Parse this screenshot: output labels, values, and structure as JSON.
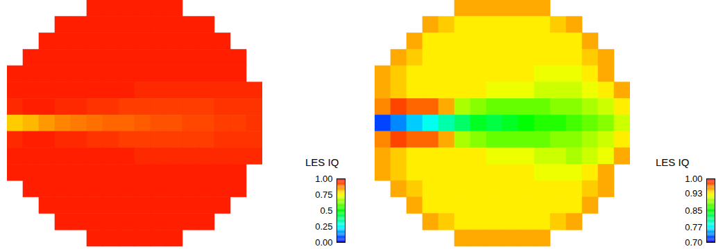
{
  "chart_data": [
    {
      "type": "heatmap",
      "colorbar": {
        "label": "LES IQ",
        "range": [
          0,
          1
        ],
        "ticks": [
          {
            "value": 1,
            "label": "1.00"
          },
          0.75,
          0.5,
          0.25,
          {
            "value": 0,
            "label": "0.00"
          }
        ]
      },
      "cells": [
        [
          null,
          null,
          null,
          null,
          null,
          0.97,
          0.97,
          0.97,
          0.97,
          0.97,
          0.97,
          null,
          null,
          null,
          null,
          null
        ],
        [
          null,
          null,
          null,
          0.97,
          0.97,
          0.97,
          0.97,
          0.97,
          0.97,
          0.97,
          0.97,
          0.97,
          0.97,
          null,
          null,
          null
        ],
        [
          null,
          null,
          0.97,
          0.97,
          0.97,
          0.97,
          0.97,
          0.97,
          0.97,
          0.97,
          0.97,
          0.97,
          0.97,
          0.97,
          null,
          null
        ],
        [
          null,
          0.97,
          0.97,
          0.97,
          0.97,
          0.97,
          0.97,
          0.97,
          0.97,
          0.97,
          0.97,
          0.97,
          0.97,
          0.97,
          0.97,
          null
        ],
        [
          0.97,
          0.97,
          0.97,
          0.97,
          0.97,
          0.97,
          0.97,
          0.97,
          0.97,
          0.97,
          0.97,
          0.97,
          0.97,
          0.97,
          0.97,
          null
        ],
        [
          0.97,
          0.97,
          0.97,
          0.97,
          0.97,
          0.97,
          0.97,
          0.97,
          0.96,
          0.96,
          0.96,
          0.96,
          0.96,
          0.96,
          0.96,
          0.96
        ],
        [
          0.96,
          0.97,
          0.97,
          0.96,
          0.96,
          0.95,
          0.95,
          0.94,
          0.94,
          0.94,
          0.94,
          0.94,
          0.94,
          0.95,
          0.95,
          0.95
        ],
        [
          0.8,
          0.82,
          0.85,
          0.87,
          0.88,
          0.89,
          0.9,
          0.9,
          0.91,
          0.92,
          0.92,
          0.93,
          0.93,
          0.94,
          0.94,
          0.95
        ],
        [
          0.96,
          0.97,
          0.97,
          0.96,
          0.96,
          0.95,
          0.95,
          0.94,
          0.94,
          0.94,
          0.94,
          0.94,
          0.94,
          0.95,
          0.95,
          0.95
        ],
        [
          0.97,
          0.97,
          0.97,
          0.97,
          0.97,
          0.97,
          0.97,
          0.97,
          0.96,
          0.96,
          0.96,
          0.96,
          0.96,
          0.96,
          0.96,
          0.96
        ],
        [
          0.97,
          0.97,
          0.97,
          0.97,
          0.97,
          0.97,
          0.97,
          0.97,
          0.97,
          0.97,
          0.97,
          0.97,
          0.97,
          0.97,
          0.97,
          null
        ],
        [
          null,
          0.97,
          0.97,
          0.97,
          0.97,
          0.97,
          0.97,
          0.97,
          0.97,
          0.97,
          0.97,
          0.97,
          0.97,
          0.97,
          0.97,
          null
        ],
        [
          null,
          null,
          0.97,
          0.97,
          0.97,
          0.97,
          0.97,
          0.97,
          0.97,
          0.97,
          0.97,
          0.97,
          0.97,
          0.97,
          null,
          null
        ],
        [
          null,
          null,
          null,
          0.97,
          0.97,
          0.97,
          0.97,
          0.97,
          0.97,
          0.97,
          0.97,
          0.97,
          0.97,
          null,
          null,
          null
        ],
        [
          null,
          null,
          null,
          null,
          null,
          0.97,
          0.97,
          0.97,
          0.97,
          0.97,
          0.97,
          null,
          null,
          null,
          null,
          null
        ]
      ]
    },
    {
      "type": "heatmap",
      "colorbar": {
        "label": "LES IQ",
        "range": [
          0.7,
          1
        ],
        "ticks": [
          {
            "value": 1,
            "label": "1.00"
          },
          0.93,
          0.85,
          0.77,
          {
            "value": 0.7,
            "label": "0.70"
          }
        ]
      },
      "cells": [
        [
          null,
          null,
          null,
          null,
          null,
          0.95,
          0.95,
          0.95,
          0.95,
          0.95,
          0.95,
          null,
          null,
          null,
          null,
          null
        ],
        [
          null,
          null,
          null,
          0.95,
          0.94,
          0.93,
          0.93,
          0.93,
          0.93,
          0.93,
          0.93,
          0.94,
          0.95,
          null,
          null,
          null
        ],
        [
          null,
          null,
          0.95,
          0.93,
          0.93,
          0.93,
          0.93,
          0.93,
          0.93,
          0.93,
          0.93,
          0.93,
          0.93,
          0.95,
          null,
          null
        ],
        [
          null,
          0.95,
          0.94,
          0.93,
          0.93,
          0.93,
          0.93,
          0.93,
          0.93,
          0.93,
          0.93,
          0.93,
          0.93,
          0.94,
          0.95,
          null
        ],
        [
          0.95,
          0.94,
          0.93,
          0.93,
          0.93,
          0.93,
          0.93,
          0.93,
          0.93,
          0.93,
          0.92,
          0.92,
          0.92,
          0.93,
          0.95,
          null
        ],
        [
          0.95,
          0.94,
          0.93,
          0.93,
          0.93,
          0.93,
          0.93,
          0.92,
          0.92,
          0.92,
          0.91,
          0.91,
          0.91,
          0.92,
          0.93,
          0.95
        ],
        [
          0.96,
          0.98,
          0.97,
          0.97,
          0.95,
          0.9,
          0.89,
          0.88,
          0.88,
          0.88,
          0.88,
          0.89,
          0.89,
          0.9,
          0.91,
          0.93
        ],
        [
          0.72,
          0.74,
          0.76,
          0.78,
          0.8,
          0.82,
          0.84,
          0.83,
          0.84,
          0.85,
          0.86,
          0.86,
          0.87,
          0.88,
          0.89,
          0.91
        ],
        [
          0.96,
          0.98,
          0.97,
          0.97,
          0.95,
          0.9,
          0.89,
          0.88,
          0.88,
          0.88,
          0.88,
          0.89,
          0.89,
          0.9,
          0.91,
          0.93
        ],
        [
          0.95,
          0.94,
          0.93,
          0.93,
          0.93,
          0.93,
          0.93,
          0.92,
          0.92,
          0.92,
          0.91,
          0.91,
          0.9,
          0.91,
          0.92,
          0.95
        ],
        [
          0.95,
          0.94,
          0.93,
          0.93,
          0.93,
          0.93,
          0.93,
          0.93,
          0.93,
          0.93,
          0.92,
          0.92,
          0.92,
          0.93,
          0.95,
          null
        ],
        [
          null,
          0.95,
          0.94,
          0.93,
          0.93,
          0.93,
          0.93,
          0.93,
          0.93,
          0.93,
          0.93,
          0.93,
          0.93,
          0.94,
          0.95,
          null
        ],
        [
          null,
          null,
          0.95,
          0.93,
          0.93,
          0.93,
          0.93,
          0.93,
          0.93,
          0.93,
          0.93,
          0.93,
          0.93,
          0.95,
          null,
          null
        ],
        [
          null,
          null,
          null,
          0.95,
          0.94,
          0.93,
          0.93,
          0.93,
          0.93,
          0.93,
          0.93,
          0.94,
          0.95,
          null,
          null,
          null
        ],
        [
          null,
          null,
          null,
          null,
          null,
          0.95,
          0.95,
          0.95,
          0.95,
          0.95,
          0.95,
          null,
          null,
          null,
          null,
          null
        ]
      ]
    }
  ]
}
